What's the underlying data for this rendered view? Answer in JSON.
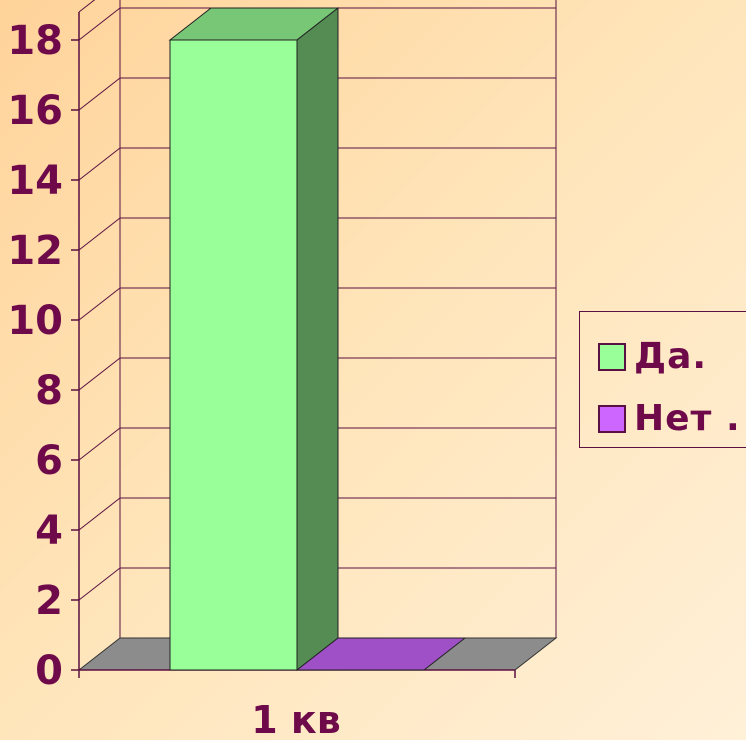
{
  "chart_data": {
    "type": "bar",
    "categories": [
      "1 кв"
    ],
    "series": [
      {
        "name": "Да.",
        "values": [
          18
        ],
        "color": "#99ff99"
      },
      {
        "name": "Нет .",
        "values": [
          0
        ],
        "color": "#cc66ff"
      }
    ],
    "yticks": [
      "0",
      "2",
      "4",
      "6",
      "8",
      "10",
      "12",
      "14",
      "16",
      "18"
    ],
    "ylim": [
      0,
      18.8
    ],
    "grid": true,
    "legend_position": "right",
    "title": "",
    "xlabel": "",
    "ylabel": ""
  }
}
